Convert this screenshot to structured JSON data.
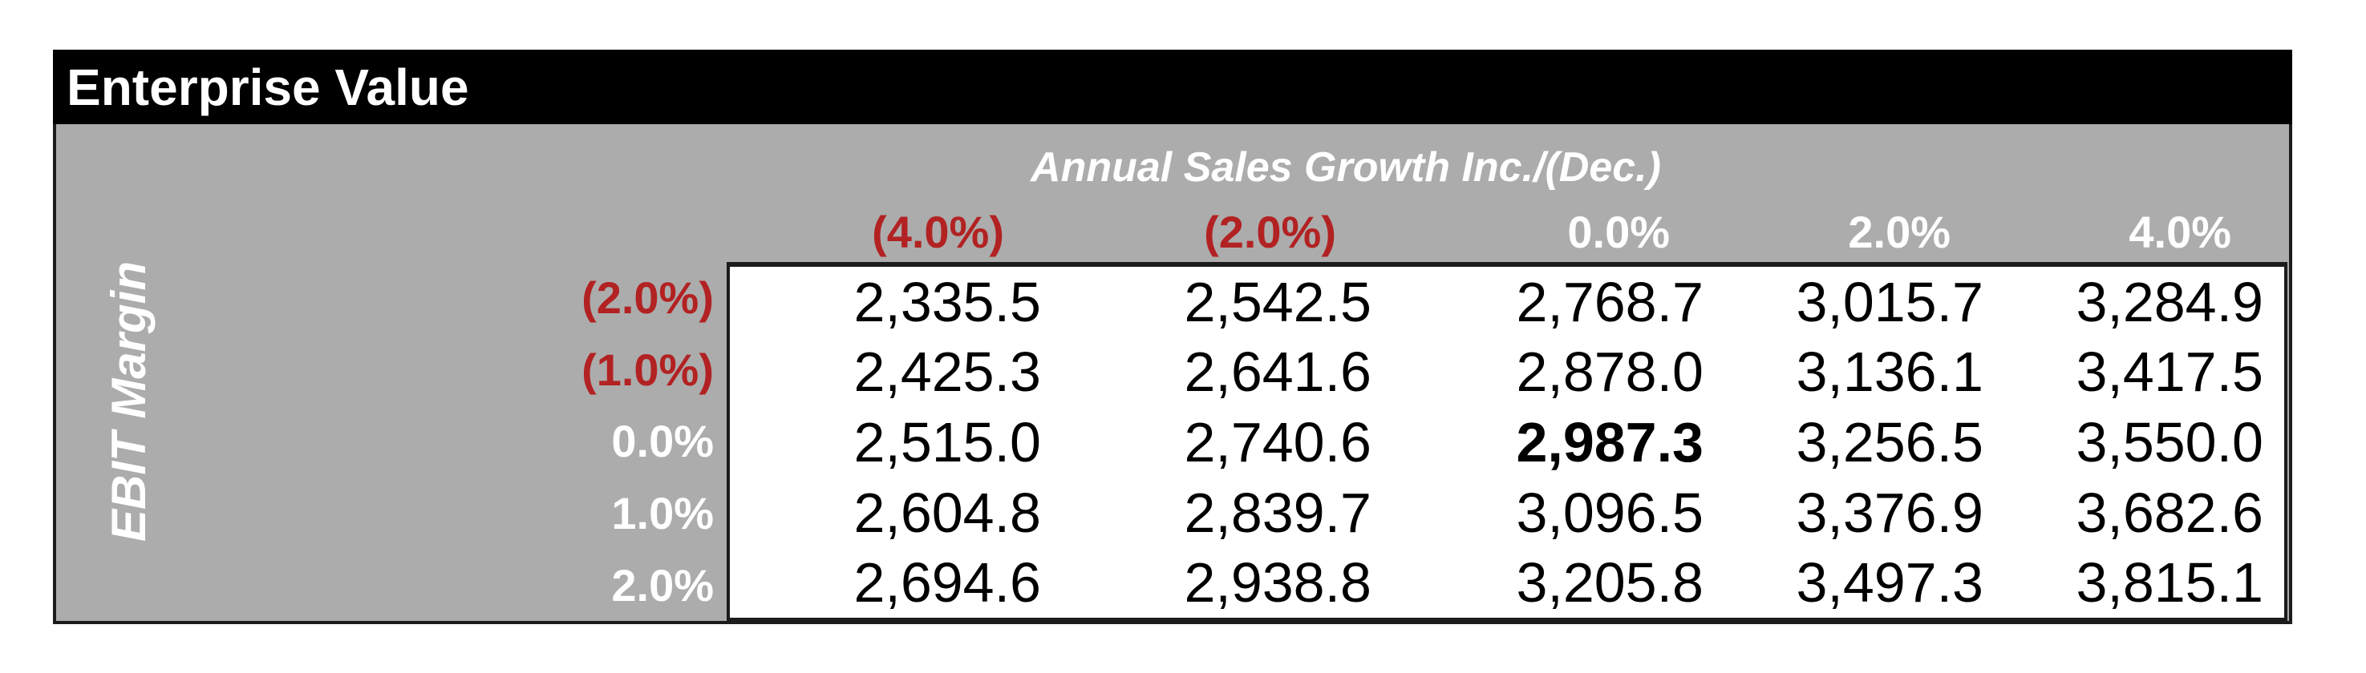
{
  "header": {
    "title": "Enterprise Value"
  },
  "axis": {
    "column_title": "Annual Sales Growth Inc./(Dec.)",
    "row_title": "EBIT Margin"
  },
  "columns": [
    "(4.0%)",
    "(2.0%)",
    "0.0%",
    "2.0%",
    "4.0%"
  ],
  "rows": [
    "(2.0%)",
    "(1.0%)",
    "0.0%",
    "1.0%",
    "2.0%"
  ],
  "matrix": [
    [
      "2,335.5",
      "2,542.5",
      "2,768.7",
      "3,015.7",
      "3,284.9"
    ],
    [
      "2,425.3",
      "2,641.6",
      "2,878.0",
      "3,136.1",
      "3,417.5"
    ],
    [
      "2,515.0",
      "2,740.6",
      "2,987.3",
      "3,256.5",
      "3,550.0"
    ],
    [
      "2,604.8",
      "2,839.7",
      "3,096.5",
      "3,376.9",
      "3,682.6"
    ],
    [
      "2,694.6",
      "2,938.8",
      "3,205.8",
      "3,497.3",
      "3,815.1"
    ]
  ],
  "base_case": {
    "row_label": "0.0%",
    "column_label": "0.0%",
    "value": "2,987.3"
  },
  "colors": {
    "title_bar_bg": "#000000",
    "body_bg": "#acacac",
    "data_bg": "#ffffff",
    "negative_label": "#b22222",
    "positive_label": "#ffffff",
    "data_text": "#000000"
  },
  "chart_data": {
    "type": "table",
    "title": "Enterprise Value",
    "xlabel": "Annual Sales Growth Inc./(Dec.)",
    "ylabel": "EBIT Margin",
    "categories_x": [
      "-4.0%",
      "-2.0%",
      "0.0%",
      "2.0%",
      "4.0%"
    ],
    "categories_y": [
      "-2.0%",
      "-1.0%",
      "0.0%",
      "1.0%",
      "2.0%"
    ],
    "values": [
      [
        2335.5,
        2542.5,
        2768.7,
        3015.7,
        3284.9
      ],
      [
        2425.3,
        2641.6,
        2878.0,
        3136.1,
        3417.5
      ],
      [
        2515.0,
        2740.6,
        2987.3,
        3256.5,
        3550.0
      ],
      [
        2604.8,
        2839.7,
        3096.5,
        3376.9,
        3682.6
      ],
      [
        2694.6,
        2938.8,
        3205.8,
        3497.3,
        3815.1
      ]
    ],
    "base_case_value": 2987.3,
    "notes": "Two-variable sensitivity table; negative axis labels shown in red parentheses"
  }
}
